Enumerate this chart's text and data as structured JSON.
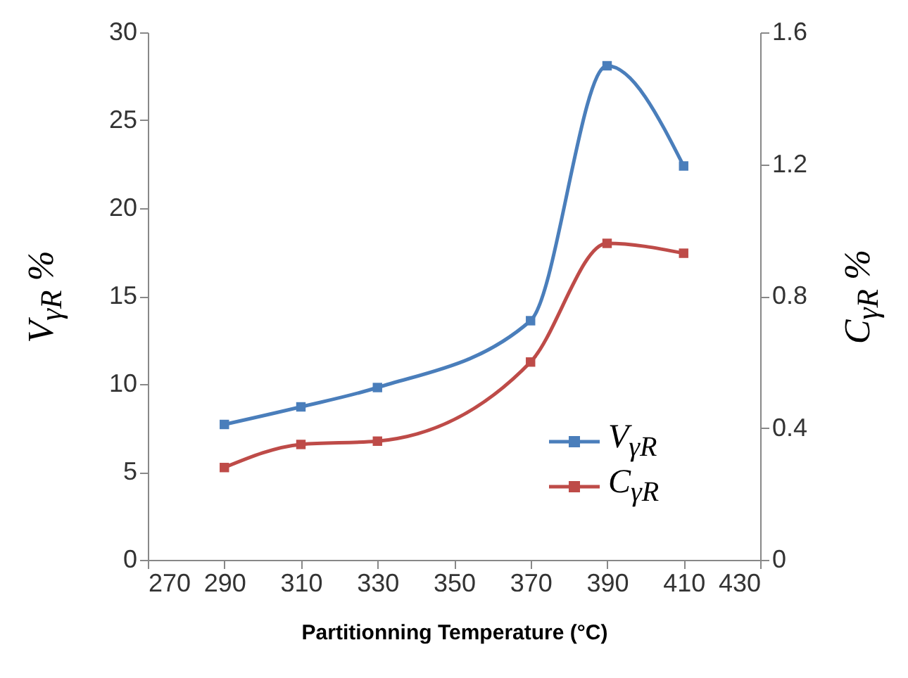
{
  "chart_data": {
    "type": "line",
    "xlabel": "Partitionning Temperature (°C)",
    "ylabel": "V$_{γR}$ %",
    "y2label": "C$_{γR}$ %",
    "x": [
      290,
      310,
      330,
      370,
      390,
      410
    ],
    "series": [
      {
        "name": "V$_{γR}$",
        "color": "#4a7ebb",
        "values": [
          7.7,
          8.7,
          9.8,
          13.6,
          28.1,
          22.4
        ]
      },
      {
        "name": "C$_{γR}$",
        "color": "#be4b48",
        "axis": "y2",
        "values": [
          0.28,
          0.35,
          0.36,
          0.6,
          0.96,
          0.93
        ]
      }
    ],
    "xlim": [
      270,
      430
    ],
    "xticks": [
      270,
      290,
      310,
      330,
      350,
      370,
      390,
      410,
      430
    ],
    "ylim": [
      0,
      30
    ],
    "yticks": [
      0,
      5,
      10,
      15,
      20,
      25,
      30
    ],
    "y2lim": [
      0,
      1.6
    ],
    "y2ticks": [
      0,
      0.4,
      0.8,
      1.2,
      1.6
    ],
    "legend": "bottom right",
    "marker": "square",
    "line_style": "solid",
    "grid": false
  }
}
